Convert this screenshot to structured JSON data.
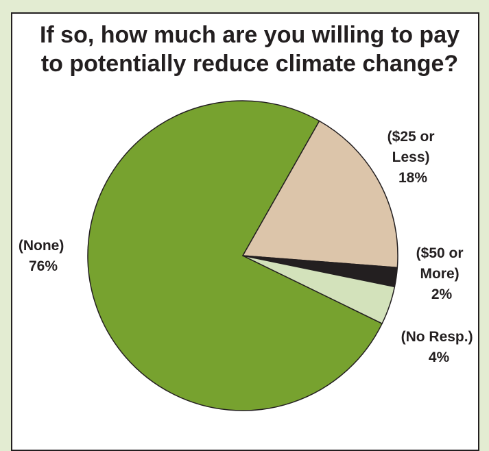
{
  "chart_data": {
    "type": "pie",
    "title": [
      "If so, how much are you willing to pay",
      "to potentially  reduce climate change?"
    ],
    "slices": [
      {
        "id": "none",
        "label": [
          "(None)",
          "76%"
        ],
        "value": 76,
        "color": "#77a22f"
      },
      {
        "id": "25-or-less",
        "label": [
          "($25 or",
          "Less)",
          "18%"
        ],
        "value": 18,
        "color": "#dcc5aa"
      },
      {
        "id": "50-or-more",
        "label": [
          "($50 or",
          "More)",
          "2%"
        ],
        "value": 2,
        "color": "#231f20"
      },
      {
        "id": "no-resp",
        "label": [
          "(No Resp.)",
          "4%"
        ],
        "value": 4,
        "color": "#d3e2bb"
      }
    ],
    "start_angle_deg": 26,
    "direction": "clockwise",
    "legend": "none"
  },
  "colors": {
    "background": "#e3ecd2",
    "panel": "#ffffff",
    "outline": "#231f20"
  }
}
